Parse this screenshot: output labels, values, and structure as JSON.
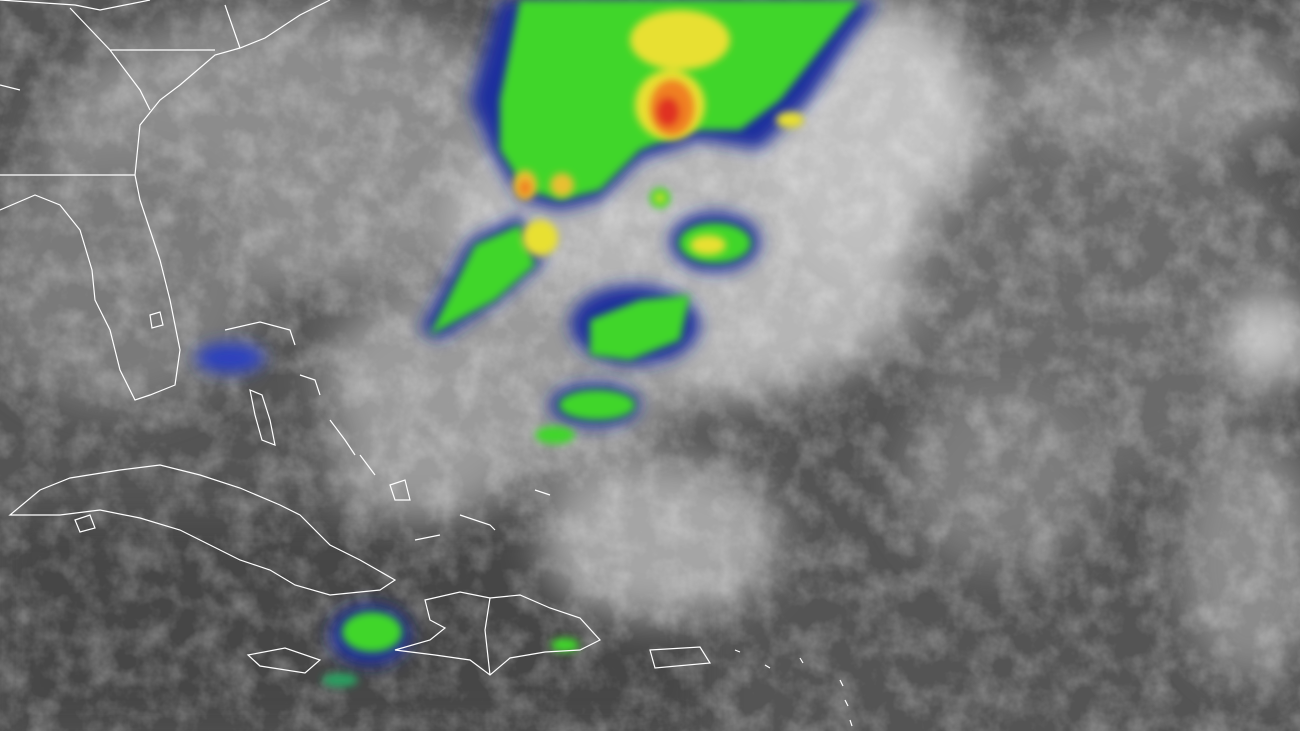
{
  "image": {
    "kind": "infrared satellite imagery",
    "colors": {
      "ocean_background": "#555555",
      "cloud_gray": "#a8a8a8",
      "cloud_bright": "#e6e6e6",
      "coastline": "#ffffff",
      "enhance_blue": "#1a2f9e",
      "enhance_cyan": "#2aa0d8",
      "enhance_green": "#3fd62a",
      "enhance_yellow": "#e8e030",
      "enhance_orange": "#f08020",
      "enhance_red": "#e03020"
    }
  }
}
